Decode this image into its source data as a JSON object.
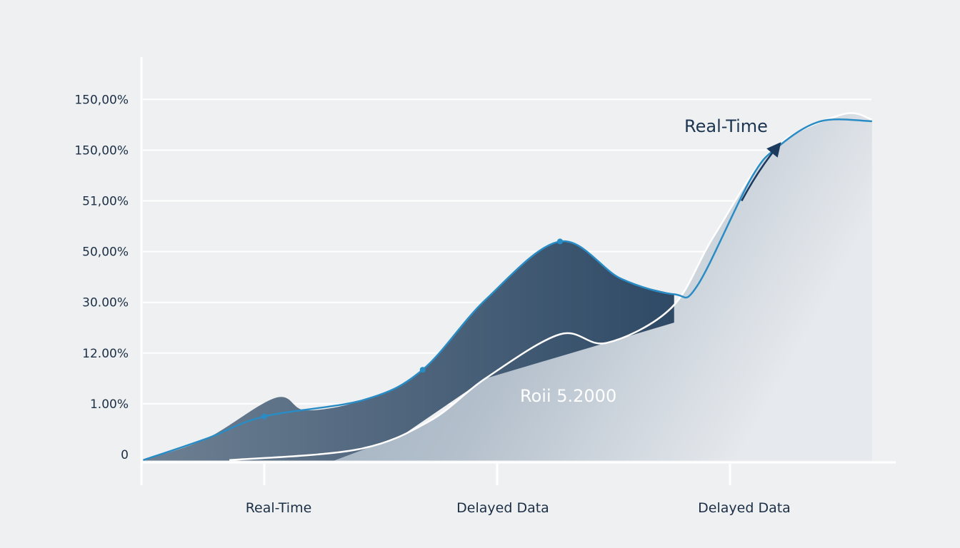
{
  "chart_data": {
    "type": "area",
    "title": "",
    "xlabel": "",
    "ylabel": "",
    "grid": true,
    "legend": "none",
    "x_categories": [
      "Real-Time",
      "Delayed Data",
      "Delayed Data"
    ],
    "y_tick_labels": [
      "0",
      "1.00%",
      "12.00%",
      "30.00%",
      "50,00%",
      "51,00%",
      "150,00%",
      "150,00%"
    ],
    "series": [
      {
        "name": "Real-Time",
        "kind": "line",
        "color": "#2a8cc4",
        "points": [
          [
            -0.52,
            -0.11
          ],
          [
            -0.25,
            0.31
          ],
          [
            0,
            0.75
          ],
          [
            0.43,
            1.08
          ],
          [
            0.68,
            1.67
          ],
          [
            0.95,
            3.05
          ],
          [
            1.27,
            4.2
          ],
          [
            1.53,
            3.47
          ],
          [
            1.76,
            3.16
          ],
          [
            1.86,
            3.33
          ],
          [
            2.09,
            5.44
          ],
          [
            2.21,
            6.08
          ],
          [
            2.39,
            6.57
          ],
          [
            2.61,
            6.57
          ]
        ],
        "markers": [
          [
            0,
            0.75
          ],
          [
            0.68,
            1.67
          ],
          [
            1.27,
            4.2
          ]
        ]
      },
      {
        "kind": "dark-area",
        "color": "#3d5a75",
        "points": [
          [
            -0.52,
            -0.11
          ],
          [
            -0.25,
            0.31
          ],
          [
            0.05,
            1.12
          ],
          [
            0.18,
            0.87
          ],
          [
            0.43,
            1.08
          ],
          [
            0.68,
            1.67
          ],
          [
            0.95,
            3.05
          ],
          [
            1.27,
            4.2
          ],
          [
            1.53,
            3.47
          ],
          [
            1.76,
            3.16
          ]
        ]
      },
      {
        "kind": "light-area",
        "color": "#9fb0c0",
        "points": [
          [
            -0.15,
            -0.11
          ],
          [
            0.4,
            0.1
          ],
          [
            0.71,
            0.66
          ],
          [
            0.95,
            1.5
          ],
          [
            1.27,
            2.37
          ],
          [
            1.47,
            2.2
          ],
          [
            1.75,
            2.9
          ],
          [
            1.93,
            4.3
          ],
          [
            2.18,
            6.0
          ],
          [
            2.48,
            6.7
          ],
          [
            2.61,
            6.6
          ]
        ]
      }
    ],
    "annotations": [
      {
        "text": "Real-Time",
        "at": [
          2.2,
          6.6
        ],
        "arrow": true
      },
      {
        "text": "Roii 5.2000",
        "at": [
          1.1,
          1.2
        ]
      }
    ]
  }
}
